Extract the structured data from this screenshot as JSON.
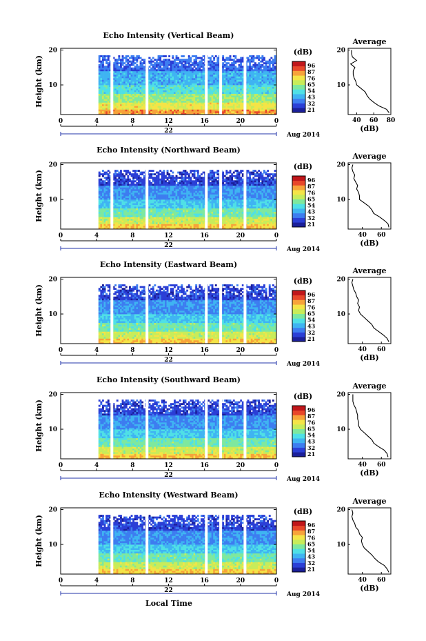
{
  "figure": {
    "xlabel": "Local Time",
    "x_ticks": [
      "0",
      "4",
      "8",
      "12",
      "16",
      "20",
      "0"
    ],
    "y_ticks": [
      "20",
      "10"
    ],
    "ylabel": "Height (km)",
    "date_label": "Aug 2014",
    "colorbar_unit": "(dB)",
    "avg_title": "Average",
    "avg_unit": "(dB)",
    "colormap": [
      "#1b1f9a",
      "#2b3fd6",
      "#3d7df0",
      "#3fb4f2",
      "#4fe0e6",
      "#7ee89e",
      "#c8ec5a",
      "#f4e447",
      "#f7a33a",
      "#e8472a",
      "#c0161a"
    ]
  },
  "chart_data": [
    {
      "type": "heatmap",
      "title": "Echo Intensity (Vertical Beam)",
      "day_label": "22",
      "xlim": [
        0,
        24
      ],
      "ylim": [
        1.5,
        20.5
      ],
      "data_start_hour": 4.2,
      "gap_hours": [
        5.7,
        9.6,
        16.2,
        17.8,
        20.5
      ],
      "colorbar_ticks": [
        "96",
        "87",
        "76",
        "65",
        "54",
        "43",
        "32",
        "21"
      ],
      "profile": {
        "xlim": [
          30,
          80
        ],
        "x_ticks": [
          "40",
          "60",
          "80"
        ],
        "heights": [
          2,
          3,
          4,
          5,
          6,
          7,
          8,
          9,
          10,
          11,
          12,
          13,
          14,
          15,
          16,
          17,
          18,
          19,
          20
        ],
        "values": [
          78,
          75,
          66,
          60,
          55,
          52,
          50,
          45,
          40,
          39,
          37,
          36,
          36,
          38,
          33,
          40,
          35,
          34,
          34
        ]
      }
    },
    {
      "type": "heatmap",
      "title": "Echo Intensity (Northward Beam)",
      "day_label": "22",
      "xlim": [
        0,
        24
      ],
      "ylim": [
        1.5,
        20.5
      ],
      "data_start_hour": 4.2,
      "gap_hours": [
        5.7,
        9.6,
        16.2,
        17.8,
        20.5
      ],
      "colorbar_ticks": [
        "96",
        "87",
        "76",
        "65",
        "54",
        "43",
        "32",
        "21"
      ],
      "profile": {
        "xlim": [
          25,
          70
        ],
        "x_ticks": [
          "40",
          "60"
        ],
        "heights": [
          2,
          3,
          4,
          5,
          6,
          7,
          8,
          9,
          10,
          11,
          12,
          13,
          14,
          15,
          16,
          17,
          18,
          19,
          20
        ],
        "values": [
          68,
          67,
          63,
          58,
          52,
          50,
          47,
          42,
          37,
          37,
          36,
          34,
          35,
          33,
          31,
          32,
          30,
          29,
          30
        ]
      }
    },
    {
      "type": "heatmap",
      "title": "Echo Intensity (Eastward Beam)",
      "day_label": "22",
      "xlim": [
        0,
        24
      ],
      "ylim": [
        1.5,
        20.5
      ],
      "data_start_hour": 4.2,
      "gap_hours": [
        5.7,
        9.6,
        16.2,
        17.8,
        20.5
      ],
      "colorbar_ticks": [
        "96",
        "87",
        "76",
        "65",
        "54",
        "43",
        "32",
        "21"
      ],
      "profile": {
        "xlim": [
          25,
          70
        ],
        "x_ticks": [
          "40",
          "60"
        ],
        "heights": [
          2,
          3,
          4,
          5,
          6,
          7,
          8,
          9,
          10,
          11,
          12,
          13,
          14,
          15,
          16,
          17,
          18,
          19,
          20
        ],
        "values": [
          68,
          66,
          62,
          57,
          52,
          50,
          46,
          42,
          38,
          36,
          37,
          35,
          36,
          34,
          33,
          31,
          30,
          29,
          30
        ]
      }
    },
    {
      "type": "heatmap",
      "title": "Echo Intensity (Southward Beam)",
      "day_label": "22",
      "xlim": [
        0,
        24
      ],
      "ylim": [
        1.5,
        20.5
      ],
      "data_start_hour": 4.2,
      "gap_hours": [
        5.7,
        9.6,
        16.2,
        17.8,
        20.5
      ],
      "colorbar_ticks": [
        "96",
        "87",
        "76",
        "65",
        "54",
        "43",
        "32",
        "21"
      ],
      "profile": {
        "xlim": [
          25,
          70
        ],
        "x_ticks": [
          "40",
          "60"
        ],
        "heights": [
          2,
          3,
          4,
          5,
          6,
          7,
          8,
          9,
          10,
          11,
          12,
          13,
          14,
          15,
          16,
          17,
          18,
          19,
          20
        ],
        "values": [
          67,
          66,
          63,
          57,
          52,
          50,
          46,
          42,
          38,
          36,
          36,
          35,
          35,
          34,
          33,
          31,
          30,
          30,
          30
        ]
      }
    },
    {
      "type": "heatmap",
      "title": "Echo Intensity (Westward Beam)",
      "day_label": "22",
      "xlim": [
        0,
        24
      ],
      "ylim": [
        1.5,
        20.5
      ],
      "data_start_hour": 4.2,
      "gap_hours": [
        5.7,
        9.6,
        16.2,
        17.8,
        20.5
      ],
      "colorbar_ticks": [
        "96",
        "87",
        "76",
        "65",
        "54",
        "43",
        "32",
        "21"
      ],
      "profile": {
        "xlim": [
          25,
          70
        ],
        "x_ticks": [
          "40",
          "60"
        ],
        "heights": [
          2,
          3,
          4,
          5,
          6,
          7,
          8,
          9,
          10,
          11,
          12,
          13,
          14,
          15,
          16,
          17,
          18,
          19,
          20
        ],
        "values": [
          68,
          66,
          63,
          57,
          53,
          50,
          46,
          42,
          40,
          39,
          40,
          37,
          36,
          33,
          32,
          30,
          29,
          30,
          29
        ]
      }
    }
  ]
}
